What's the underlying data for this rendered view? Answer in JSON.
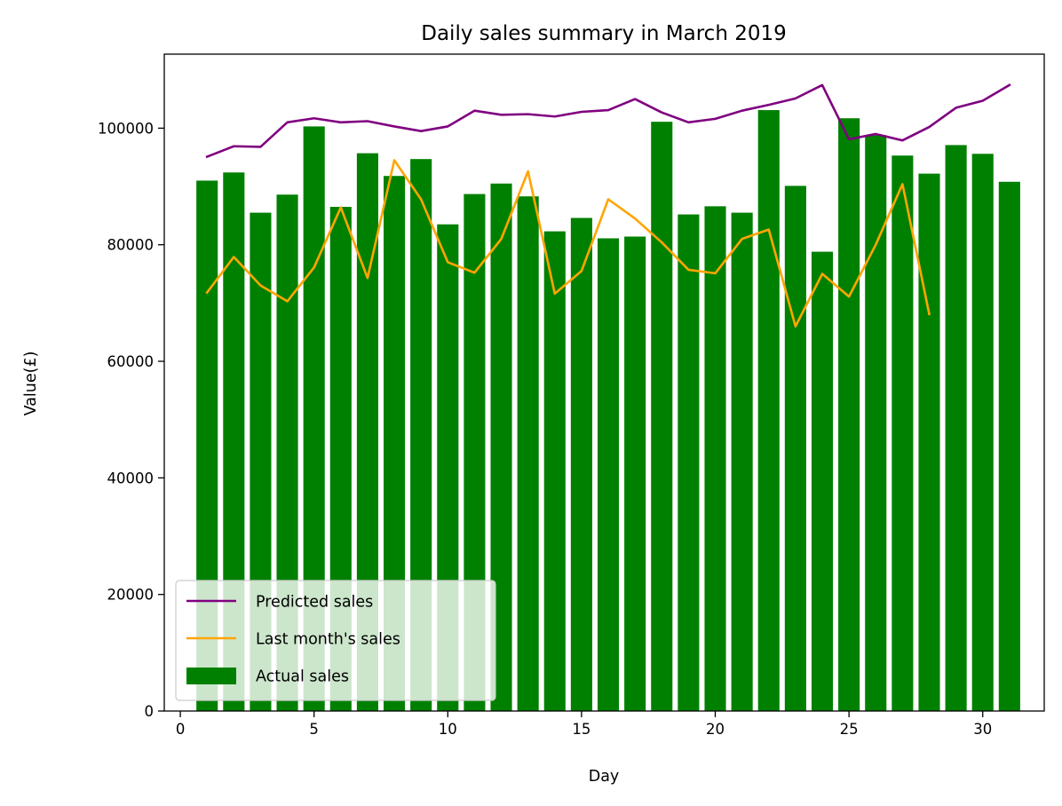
{
  "chart_data": {
    "type": "bar",
    "title": "Daily sales summary in March 2019",
    "xlabel": "Day",
    "ylabel": "Value(£)",
    "xlim": [
      -0.6,
      32.3
    ],
    "ylim": [
      0,
      112700
    ],
    "xticks": [
      0,
      5,
      10,
      15,
      20,
      25,
      30
    ],
    "yticks": [
      0,
      20000,
      40000,
      60000,
      80000,
      100000
    ],
    "grid": false,
    "legend_position": "lower-left",
    "x": [
      1,
      2,
      3,
      4,
      5,
      6,
      7,
      8,
      9,
      10,
      11,
      12,
      13,
      14,
      15,
      16,
      17,
      18,
      19,
      20,
      21,
      22,
      23,
      24,
      25,
      26,
      27,
      28,
      29,
      30,
      31
    ],
    "series": [
      {
        "name": "Predicted sales",
        "kind": "line",
        "color": "#800080",
        "x": [
          1,
          2,
          3,
          4,
          5,
          6,
          7,
          8,
          9,
          10,
          11,
          12,
          13,
          14,
          15,
          16,
          17,
          18,
          19,
          20,
          21,
          22,
          23,
          24,
          25,
          26,
          27,
          28,
          29,
          30,
          31
        ],
        "values": [
          95100,
          96900,
          96800,
          101000,
          101700,
          101000,
          101200,
          100300,
          99500,
          100300,
          103000,
          102300,
          102400,
          102000,
          102800,
          103100,
          105000,
          102700,
          101000,
          101600,
          103000,
          104000,
          105100,
          107400,
          98100,
          99000,
          97900,
          100200,
          103500,
          104700,
          107400
        ]
      },
      {
        "name": "Last month's sales",
        "kind": "line",
        "color": "#FFA500",
        "x": [
          1,
          2,
          3,
          4,
          5,
          6,
          7,
          8,
          9,
          10,
          11,
          12,
          13,
          14,
          15,
          16,
          17,
          18,
          19,
          20,
          21,
          22,
          23,
          24,
          25,
          26,
          27,
          28
        ],
        "values": [
          71800,
          77900,
          73000,
          70300,
          76100,
          86400,
          74300,
          94500,
          87800,
          77000,
          75200,
          81000,
          92600,
          71600,
          75500,
          87800,
          84500,
          80400,
          75700,
          75100,
          81000,
          82600,
          66000,
          75000,
          71100,
          80000,
          90400,
          68100
        ]
      },
      {
        "name": "Actual sales",
        "kind": "bar",
        "color": "#008000",
        "x": [
          1,
          2,
          3,
          4,
          5,
          6,
          7,
          8,
          9,
          10,
          11,
          12,
          13,
          14,
          15,
          16,
          17,
          18,
          19,
          20,
          21,
          22,
          23,
          24,
          25,
          26,
          27,
          28,
          29,
          30,
          31
        ],
        "values": [
          91000,
          92400,
          85500,
          88600,
          100300,
          86500,
          95700,
          91800,
          94700,
          83500,
          88700,
          90500,
          88300,
          82300,
          84600,
          81100,
          81400,
          101100,
          85200,
          86600,
          85500,
          103100,
          90100,
          78800,
          101700,
          98800,
          95300,
          92200,
          97100,
          95600,
          90800
        ]
      }
    ]
  }
}
